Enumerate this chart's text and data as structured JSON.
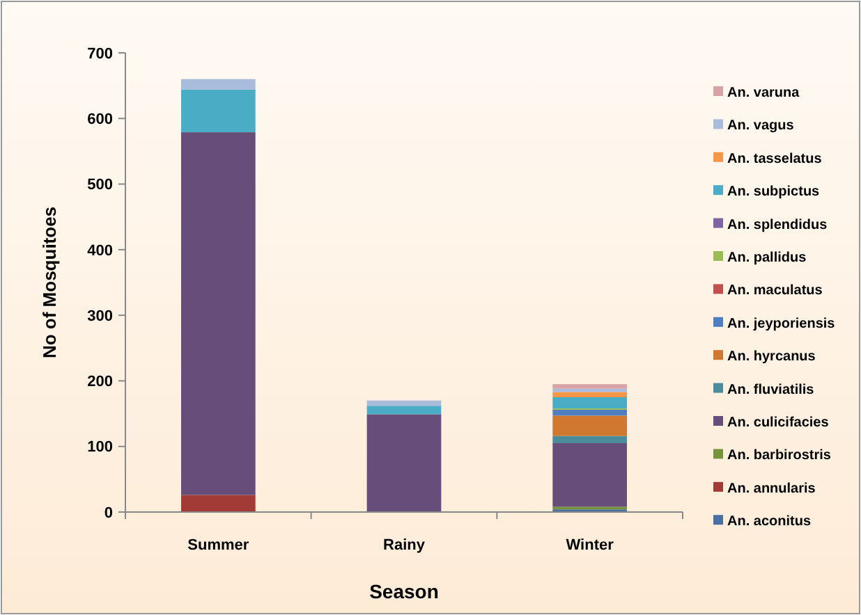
{
  "chart_data": {
    "type": "bar",
    "stacked": true,
    "xlabel": "Season",
    "ylabel": "No of Mosquitoes",
    "categories": [
      "Summer",
      "Rainy",
      "Winter"
    ],
    "ylim": [
      0,
      700
    ],
    "yticks": [
      0,
      100,
      200,
      300,
      400,
      500,
      600,
      700
    ],
    "grid": false,
    "legend": "right",
    "series": [
      {
        "name": "An. aconitus",
        "color": "#4a6fa5",
        "values": [
          0,
          0,
          4
        ]
      },
      {
        "name": "An. annularis",
        "color": "#a23b36",
        "values": [
          26,
          0,
          0
        ]
      },
      {
        "name": "An. barbirostris",
        "color": "#77933c",
        "values": [
          0,
          0,
          4
        ]
      },
      {
        "name": "An. culicifacies",
        "color": "#674d79",
        "values": [
          553,
          149,
          97
        ]
      },
      {
        "name": "An. fluviatilis",
        "color": "#4a8c99",
        "values": [
          0,
          0,
          11
        ]
      },
      {
        "name": "An. hyrcanus",
        "color": "#d0782f",
        "values": [
          0,
          0,
          31
        ]
      },
      {
        "name": "An. jeyporiensis",
        "color": "#4f7fc0",
        "values": [
          0,
          0,
          9
        ]
      },
      {
        "name": "An. maculatus",
        "color": "#c0504d",
        "values": [
          0,
          0,
          0
        ]
      },
      {
        "name": "An. pallidus",
        "color": "#9bbb59",
        "values": [
          0,
          0,
          2
        ]
      },
      {
        "name": "An. splendidus",
        "color": "#8064a2",
        "values": [
          0,
          0,
          0
        ]
      },
      {
        "name": "An. subpictus",
        "color": "#4bacc6",
        "values": [
          65,
          13,
          17
        ]
      },
      {
        "name": "An. tasselatus",
        "color": "#f79646",
        "values": [
          0,
          0,
          8
        ]
      },
      {
        "name": "An. vagus",
        "color": "#a9bcdb",
        "values": [
          16,
          8,
          5
        ]
      },
      {
        "name": "An. varuna",
        "color": "#d7a3a4",
        "values": [
          0,
          0,
          7
        ]
      }
    ]
  }
}
